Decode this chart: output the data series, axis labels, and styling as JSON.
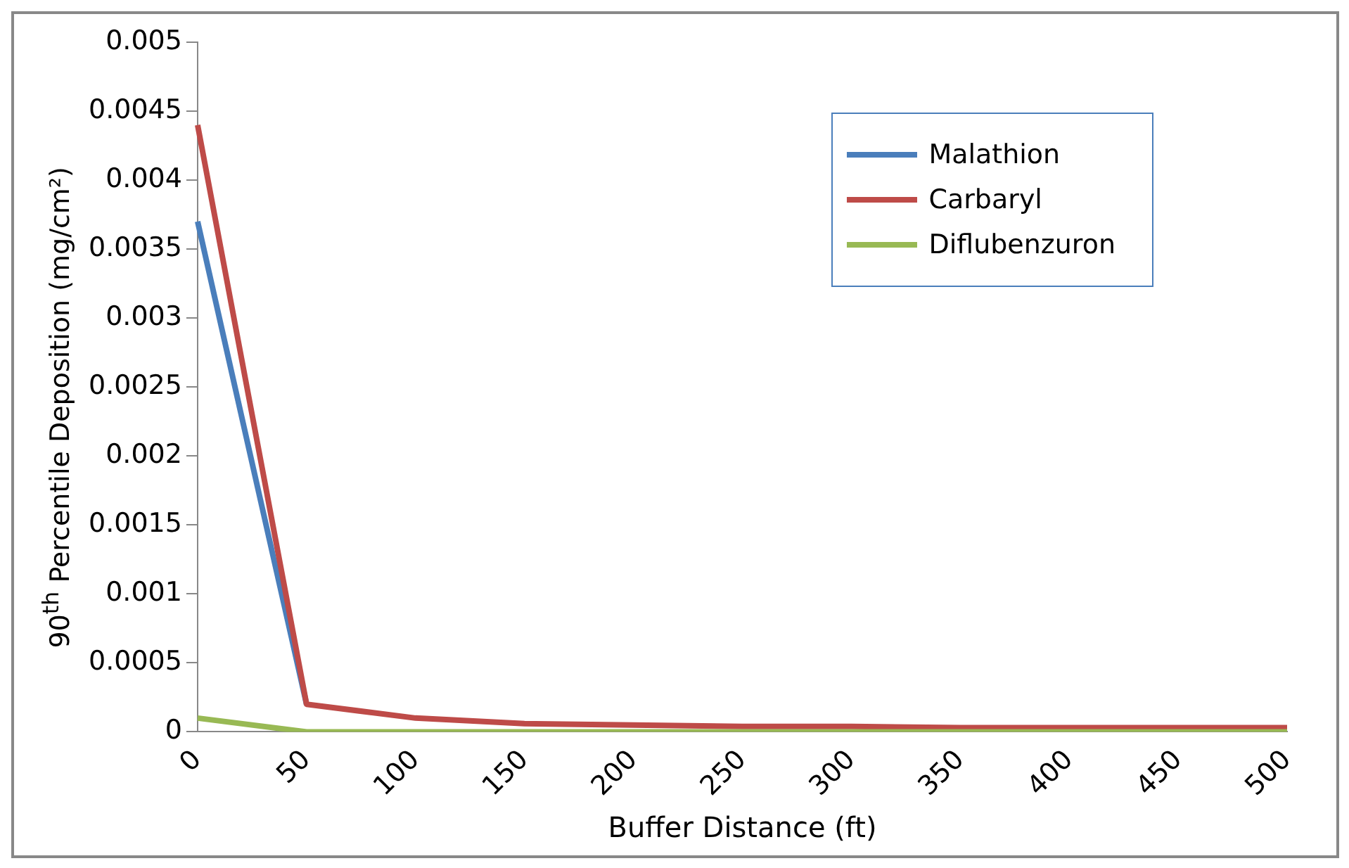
{
  "chart_data": {
    "type": "line",
    "xlabel": "Buffer Distance (ft)",
    "ylabel": "90$^{th}$ Percentile  Deposition (mg/cm²)",
    "categories": [
      "0",
      "50",
      "100",
      "150",
      "200",
      "250",
      "300",
      "350",
      "400",
      "450",
      "500"
    ],
    "series": [
      {
        "name": "Malathion",
        "color": "#4a7ebb",
        "values": [
          0.0037,
          0.0002,
          null,
          null,
          null,
          null,
          null,
          null,
          null,
          null,
          null
        ]
      },
      {
        "name": "Carbaryl",
        "color": "#be4b48",
        "values": [
          0.0044,
          0.0002,
          0.0001,
          6e-05,
          5e-05,
          4e-05,
          4e-05,
          3e-05,
          3e-05,
          3e-05,
          3e-05
        ]
      },
      {
        "name": "Diflubenzuron",
        "color": "#98b954",
        "values": [
          0.0001,
          0,
          0,
          0,
          0,
          0,
          0,
          0,
          0,
          0,
          0
        ]
      }
    ],
    "ylim": [
      0,
      0.005
    ],
    "yticks": [
      0,
      0.0005,
      0.001,
      0.0015,
      0.002,
      0.0025,
      0.003,
      0.0035,
      0.004,
      0.0045,
      0.005
    ],
    "grid": false,
    "legend": "top right",
    "marker": "none",
    "line_style": "solid"
  }
}
